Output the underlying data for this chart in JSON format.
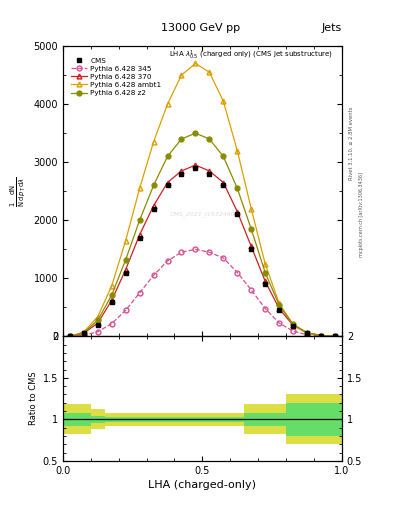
{
  "title_top": "13000 GeV pp",
  "title_right": "Jets",
  "header": "LHA $\\lambda^{1}_{0.5}$ (charged only) (CMS jet substructure)",
  "xlabel": "LHA (charged-only)",
  "ylabel_lines": [
    "$\\frac{1}{\\mathrm{N}}\\frac{\\mathrm{d}\\mathrm{N}}{\\mathrm{d}\\,p_T\\,\\mathrm{d}\\lambda}$"
  ],
  "ylabel_ratio": "Ratio to CMS",
  "watermark": "CMS_2021_I1932460",
  "rivet_text": "Rivet 3.1.10, ≥ 2.8M events",
  "mcplots_text": "mcplots.cern.ch [arXiv:1306.3436]",
  "x_bins": [
    0.0,
    0.05,
    0.1,
    0.15,
    0.2,
    0.25,
    0.3,
    0.35,
    0.4,
    0.45,
    0.5,
    0.55,
    0.6,
    0.65,
    0.7,
    0.75,
    0.8,
    0.85,
    0.9,
    0.95,
    1.0
  ],
  "cms_values": [
    0,
    50,
    200,
    600,
    1100,
    1700,
    2200,
    2600,
    2800,
    2900,
    2800,
    2600,
    2100,
    1500,
    900,
    450,
    180,
    60,
    15,
    3
  ],
  "py345_values": [
    0,
    20,
    80,
    220,
    450,
    750,
    1050,
    1300,
    1450,
    1500,
    1450,
    1350,
    1100,
    800,
    480,
    230,
    90,
    28,
    7,
    1
  ],
  "py370_values": [
    0,
    55,
    230,
    620,
    1150,
    1750,
    2250,
    2650,
    2850,
    2950,
    2850,
    2650,
    2150,
    1550,
    950,
    480,
    190,
    60,
    14,
    3
  ],
  "pyambt1_values": [
    0,
    75,
    340,
    870,
    1650,
    2550,
    3350,
    4000,
    4500,
    4700,
    4550,
    4050,
    3200,
    2200,
    1250,
    570,
    200,
    55,
    12,
    2
  ],
  "pyz2_values": [
    0,
    65,
    280,
    710,
    1320,
    2000,
    2600,
    3100,
    3400,
    3500,
    3400,
    3100,
    2550,
    1850,
    1100,
    540,
    210,
    65,
    15,
    3
  ],
  "ratio_x_edges": [
    0.0,
    0.05,
    0.1,
    0.15,
    0.2,
    0.25,
    0.3,
    0.35,
    0.4,
    0.45,
    0.5,
    0.55,
    0.6,
    0.65,
    0.7,
    0.75,
    0.8,
    0.85,
    0.9,
    0.95,
    1.0
  ],
  "ratio_green_lo": [
    0.92,
    0.92,
    0.96,
    0.97,
    0.97,
    0.97,
    0.97,
    0.97,
    0.97,
    0.97,
    0.97,
    0.97,
    0.97,
    0.92,
    0.92,
    0.92,
    0.8,
    0.8,
    0.8,
    0.8
  ],
  "ratio_green_hi": [
    1.08,
    1.08,
    1.04,
    1.03,
    1.03,
    1.03,
    1.03,
    1.03,
    1.03,
    1.03,
    1.03,
    1.03,
    1.03,
    1.08,
    1.08,
    1.08,
    1.2,
    1.2,
    1.2,
    1.2
  ],
  "ratio_yellow_lo": [
    0.82,
    0.82,
    0.88,
    0.92,
    0.92,
    0.92,
    0.92,
    0.92,
    0.92,
    0.92,
    0.92,
    0.92,
    0.92,
    0.82,
    0.82,
    0.82,
    0.7,
    0.7,
    0.7,
    0.7
  ],
  "ratio_yellow_hi": [
    1.18,
    1.18,
    1.12,
    1.08,
    1.08,
    1.08,
    1.08,
    1.08,
    1.08,
    1.08,
    1.08,
    1.08,
    1.08,
    1.18,
    1.18,
    1.18,
    1.3,
    1.3,
    1.3,
    1.3
  ],
  "ylim_main": [
    0,
    5000
  ],
  "yticks_main": [
    0,
    1000,
    2000,
    3000,
    4000,
    5000
  ],
  "ylim_ratio": [
    0.5,
    2.0
  ],
  "cms_color": "#000000",
  "py345_color": "#d45090",
  "py370_color": "#cc2020",
  "pyambt1_color": "#daa000",
  "pyz2_color": "#8B8B00",
  "green_band_color": "#66dd66",
  "yellow_band_color": "#dddd44",
  "ratio_line_color": "#000000",
  "bg_color": "#ffffff",
  "legend_entries": [
    "CMS",
    "Pythia 6.428 345",
    "Pythia 6.428 370",
    "Pythia 6.428 ambt1",
    "Pythia 6.428 z2"
  ]
}
